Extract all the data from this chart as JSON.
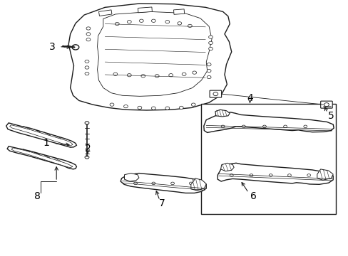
{
  "bg_color": "#ffffff",
  "line_color": "#1a1a1a",
  "label_color": "#000000",
  "label_fontsize": 10,
  "figsize": [
    4.89,
    3.6
  ],
  "dpi": 100
}
